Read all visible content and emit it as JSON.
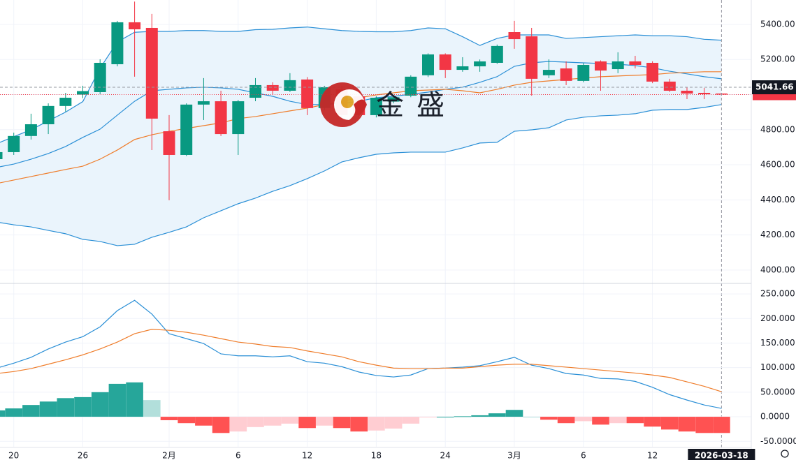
{
  "chart_data": [
    {
      "type": "candlestick",
      "categories": [
        null,
        "20",
        null,
        null,
        null,
        "26",
        null,
        null,
        null,
        null,
        "2月",
        null,
        null,
        null,
        "6",
        null,
        null,
        null,
        "12",
        null,
        null,
        null,
        "18",
        null,
        null,
        null,
        "24",
        null,
        null,
        null,
        "3月",
        null,
        null,
        null,
        "6",
        null,
        null,
        null,
        "12",
        null,
        null,
        null,
        null
      ],
      "open": [
        4632,
        4672,
        4764,
        4831,
        4935,
        5000,
        5014,
        5173,
        5412,
        5380,
        4791,
        4656,
        4943,
        4962,
        4775,
        4982,
        5054,
        5022,
        5086,
        4923,
        5030,
        4990,
        4883,
        4960,
        4994,
        5110,
        5229,
        5141,
        5161,
        5181,
        5356,
        5332,
        5110,
        5149,
        5078,
        5189,
        5145,
        5189,
        5181,
        5074,
        5022,
        5010,
        5006
      ],
      "high": [
        4690,
        4783,
        4891,
        4950,
        5010,
        5050,
        5201,
        5420,
        5530,
        5460,
        4883,
        4950,
        5094,
        5022,
        4970,
        5094,
        5070,
        5122,
        5100,
        5050,
        5050,
        5000,
        4990,
        4995,
        5110,
        5235,
        5235,
        5213,
        5200,
        5285,
        5420,
        5380,
        5201,
        5189,
        5180,
        5195,
        5241,
        5221,
        5190,
        5090,
        5042,
        5038,
        5010
      ],
      "low": [
        4620,
        4656,
        4744,
        4775,
        4903,
        4980,
        5002,
        5161,
        5102,
        4684,
        4398,
        4650,
        4855,
        4764,
        4656,
        4962,
        5000,
        5015,
        4883,
        4910,
        4870,
        4870,
        4870,
        4950,
        4985,
        5100,
        5094,
        5130,
        5130,
        5175,
        5261,
        4994,
        5094,
        5054,
        5070,
        5022,
        5122,
        5149,
        5065,
        5015,
        4974,
        4974,
        4995
      ],
      "close": [
        4672,
        4764,
        4831,
        4935,
        4982,
        5020,
        5181,
        5412,
        5372,
        4863,
        4656,
        4943,
        4962,
        4775,
        4962,
        5054,
        5022,
        5082,
        4923,
        5042,
        4883,
        4883,
        4982,
        4985,
        5102,
        5229,
        5141,
        5161,
        5189,
        5277,
        5316,
        5090,
        5141,
        5078,
        5169,
        5137,
        5189,
        5169,
        5074,
        5022,
        5006,
        5002,
        5000
      ],
      "up_color": "#089981",
      "down_color": "#f23645",
      "series": [
        {
          "color": "#2a8fd6",
          "values": [
            4720,
            4760,
            4800,
            4850,
            4900,
            4960,
            5150,
            5300,
            5355,
            5360,
            5360,
            5365,
            5365,
            5360,
            5360,
            5370,
            5372,
            5380,
            5385,
            5375,
            5365,
            5360,
            5358,
            5358,
            5365,
            5380,
            5375,
            5330,
            5280,
            5320,
            5340,
            5340,
            5340,
            5320,
            5325,
            5330,
            5335,
            5340,
            5335,
            5335,
            5330,
            5315,
            5310
          ]
        },
        {
          "color": "#2a8fd6",
          "values": [
            4585,
            4604,
            4632,
            4664,
            4704,
            4756,
            4803,
            4883,
            4962,
            5022,
            5030,
            5038,
            5042,
            5038,
            5030,
            5010,
            4990,
            4962,
            4943,
            4943,
            4950,
            4962,
            4982,
            4990,
            5002,
            5014,
            5030,
            5042,
            5070,
            5102,
            5161,
            5181,
            5189,
            5185,
            5181,
            5177,
            5173,
            5165,
            5153,
            5133,
            5118,
            5102,
            5090
          ]
        },
        {
          "color": "#2a8fd6",
          "values": [
            4274,
            4258,
            4246,
            4226,
            4207,
            4175,
            4163,
            4139,
            4147,
            4187,
            4215,
            4246,
            4298,
            4338,
            4378,
            4410,
            4449,
            4481,
            4521,
            4565,
            4616,
            4640,
            4660,
            4668,
            4672,
            4672,
            4672,
            4696,
            4724,
            4728,
            4791,
            4799,
            4811,
            4855,
            4871,
            4879,
            4883,
            4891,
            4911,
            4915,
            4915,
            4927,
            4943
          ]
        },
        {
          "color": "#ef7d2b",
          "values": [
            4493,
            4513,
            4533,
            4553,
            4573,
            4592,
            4632,
            4684,
            4744,
            4771,
            4791,
            4807,
            4823,
            4839,
            4863,
            4875,
            4891,
            4907,
            4923,
            4943,
            4962,
            4982,
            4998,
            5010,
            5022,
            5026,
            5030,
            5022,
            5010,
            5030,
            5054,
            5070,
            5078,
            5086,
            5094,
            5102,
            5106,
            5110,
            5114,
            5122,
            5126,
            5130,
            5130
          ]
        }
      ],
      "band_color": "#eaf4fc",
      "ylim": [
        3928,
        5539
      ],
      "yticks": [
        {
          "value": 4000,
          "label": "4000.00"
        },
        {
          "value": 4200,
          "label": "4200.00"
        },
        {
          "value": 4400,
          "label": "4400.00"
        },
        {
          "value": 4600,
          "label": "4600.00"
        },
        {
          "value": 4800,
          "label": "4800.00"
        },
        {
          "value": 5000,
          "label": "5000.00"
        },
        {
          "value": 5200,
          "label": "5200.00"
        },
        {
          "value": 5400,
          "label": "5400.00"
        }
      ],
      "crosshair_price": 5041.66,
      "crosshair_date": "2026-03-18",
      "grid": true,
      "watermark": "金盛"
    },
    {
      "type": "macd",
      "histogram": [
        13,
        17,
        24,
        31,
        38,
        40,
        50,
        67,
        70,
        34,
        -7,
        -13,
        -18,
        -33,
        -30,
        -21,
        -18,
        -14,
        -23,
        -18,
        -23,
        -30,
        -28,
        -24,
        -14,
        -1,
        0,
        1,
        3,
        7,
        14,
        0,
        -6,
        -13,
        -9,
        -16,
        -13,
        -13,
        -20,
        -26,
        -30,
        -33,
        -33
      ],
      "colors": {
        "rise_pos": "#26a69a",
        "fall_pos": "#b2dfdb",
        "fall_neg": "#ff5252",
        "rise_neg": "#ffcdd2"
      },
      "series": [
        {
          "color": "#2a8fd6",
          "values": [
            99,
            109,
            121,
            138,
            152,
            163,
            183,
            216,
            237,
            209,
            169,
            159,
            149,
            128,
            124,
            124,
            122,
            124,
            112,
            109,
            102,
            91,
            84,
            81,
            85,
            98,
            99,
            101,
            104,
            112,
            121,
            105,
            98,
            88,
            85,
            78,
            77,
            72,
            60,
            45,
            34,
            24,
            17
          ]
        },
        {
          "color": "#ef7d2b",
          "values": [
            88,
            92,
            98,
            107,
            116,
            126,
            138,
            152,
            169,
            178,
            176,
            172,
            166,
            159,
            152,
            148,
            143,
            141,
            134,
            128,
            122,
            112,
            105,
            99,
            98,
            98,
            99,
            99,
            102,
            105,
            107,
            107,
            104,
            101,
            98,
            95,
            92,
            89,
            85,
            80,
            71,
            62,
            51
          ]
        }
      ],
      "ylim": [
        -61,
        270
      ],
      "yticks": [
        {
          "value": 250,
          "label": "250.000"
        },
        {
          "value": 200,
          "label": "200.000"
        },
        {
          "value": 150,
          "label": "150.000"
        },
        {
          "value": 100,
          "label": "100.000"
        },
        {
          "value": 50,
          "label": "50.0000"
        },
        {
          "value": 0,
          "label": "0.0000"
        },
        {
          "value": -50,
          "label": "-50.0000"
        }
      ],
      "grid": true
    }
  ]
}
